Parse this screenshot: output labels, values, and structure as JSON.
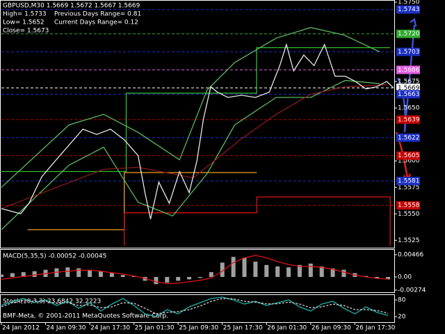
{
  "chart_data": [
    {
      "type": "line",
      "title": "GBPUSD,M30 1.5669 1.5672 1.5667 1.5669",
      "annotations": [
        "High= 1.5733",
        "Previous Days Range= 0.81",
        "Low= 1.5652",
        "Current Days Range= 0.12",
        "Close= 1.5673"
      ],
      "xlim": [
        0,
        71
      ],
      "ylim": [
        1.5518,
        1.5752
      ],
      "xticks": [
        {
          "value": 0,
          "label": "24 Jan 2012"
        },
        {
          "value": 8,
          "label": "24 Jan 09:30"
        },
        {
          "value": 16,
          "label": "24 Jan 17:30"
        },
        {
          "value": 24,
          "label": "25 Jan 01:30"
        },
        {
          "value": 32,
          "label": "25 Jan 09:30"
        },
        {
          "value": 40,
          "label": "25 Jan 17:30"
        },
        {
          "value": 48,
          "label": "26 Jan 01:30"
        },
        {
          "value": 56,
          "label": "26 Jan 09:30"
        },
        {
          "value": 64,
          "label": "26 Jan 17:30"
        }
      ],
      "yticks": [
        1.5525,
        {
          "value": 1.555,
          "label": "1.5550"
        },
        1.5575,
        {
          "value": 1.56,
          "label": "1.5600"
        },
        {
          "value": 1.565,
          "label": "1.5650"
        },
        1.5675,
        {
          "value": 1.575,
          "label": "1.5750"
        }
      ],
      "levels": [
        {
          "value": 1.5743,
          "color": "#1c2fc0"
        },
        {
          "value": 1.572,
          "label": "1.5720",
          "color": "#2fa82f"
        },
        {
          "value": 1.5703,
          "color": "#1c2fc0"
        },
        {
          "value": 1.5686,
          "color": "#e060e0"
        },
        {
          "value": 1.5669,
          "color": "#ffffff"
        },
        {
          "value": 1.5663,
          "color": "#1c2fc0"
        },
        {
          "value": 1.5639,
          "color": "#c00000"
        },
        {
          "value": 1.5622,
          "color": "#1c2fc0"
        },
        {
          "value": 1.5605,
          "color": "#c00000"
        },
        {
          "value": 1.5581,
          "color": "#1c2fc0"
        },
        {
          "value": 1.5558,
          "color": "#c00000"
        }
      ],
      "series": [
        {
          "color": "#30c030",
          "x": [
            0,
            22.6,
            22.6,
            46.2,
            46.2,
            70.4
          ],
          "values": [
            1.559,
            1.559,
            1.5664,
            1.5664,
            1.5707,
            1.5707
          ]
        },
        {
          "color": "#f0a020",
          "x": [
            4.75,
            22.25,
            22.25,
            46.25
          ],
          "values": [
            1.5535,
            1.5535,
            1.5589,
            1.5589
          ]
        },
        {
          "color": "#e01010",
          "x": [
            22.25,
            22.25,
            46.25,
            46.25,
            70.4,
            70.4
          ],
          "values": [
            1.552,
            1.5551,
            1.5551,
            1.5566,
            1.5566,
            1.552
          ]
        },
        {
          "color": "#5cb85c",
          "x": [
            0,
            12.25,
            18.5,
            24.75,
            32.25,
            37.25,
            42.25,
            49.75,
            56,
            62,
            68.5
          ],
          "values": [
            1.5575,
            1.5634,
            1.5644,
            1.5627,
            1.5601,
            1.5667,
            1.5693,
            1.5716,
            1.5726,
            1.5719,
            1.5703
          ]
        },
        {
          "color": "#5cb85c",
          "x": [
            0,
            12.25,
            18.5,
            24.75,
            31,
            37.25,
            42.25,
            49.75,
            56,
            62.25,
            68.5
          ],
          "values": [
            1.5535,
            1.5596,
            1.5613,
            1.5561,
            1.5548,
            1.5588,
            1.5634,
            1.566,
            1.566,
            1.5676,
            1.5673
          ]
        },
        {
          "color": "#8b1a1a",
          "x": [
            0,
            18.5,
            24.75,
            34.75,
            43.5,
            49.75,
            56,
            62.25,
            69.75
          ],
          "values": [
            1.5555,
            1.5592,
            1.5594,
            1.5584,
            1.5621,
            1.5644,
            1.5663,
            1.567,
            1.5672
          ]
        },
        {
          "color": "#e8e8e8",
          "x": [
            0,
            3.5,
            5,
            7.3,
            9.75,
            12.25,
            14.75,
            17.25,
            19.75,
            22.25,
            24.75,
            26,
            27,
            28.5,
            30.4,
            32.25,
            34,
            35.4,
            36.6,
            37.9,
            39.1,
            41,
            43.5,
            46,
            48.5,
            50.4,
            51.6,
            52.9,
            54.75,
            56.6,
            58.5,
            60.4,
            62.25,
            64.1,
            66,
            67.9,
            69.75,
            71
          ],
          "values": [
            1.5555,
            1.555,
            1.556,
            1.5585,
            1.56,
            1.5615,
            1.563,
            1.5625,
            1.563,
            1.562,
            1.5605,
            1.557,
            1.5545,
            1.558,
            1.556,
            1.559,
            1.557,
            1.56,
            1.564,
            1.567,
            1.5665,
            1.566,
            1.5662,
            1.566,
            1.5665,
            1.569,
            1.571,
            1.5685,
            1.57,
            1.569,
            1.571,
            1.568,
            1.568,
            1.5675,
            1.5668,
            1.567,
            1.5675,
            1.5669
          ]
        }
      ]
    },
    {
      "type": "bar",
      "title": "MACD(5,35,5) -0.00052 -0.00045",
      "xlim": [
        0,
        71
      ],
      "ylim": [
        -0.0032,
        0.00582
      ],
      "yticks": [
        0.00466,
        {
          "value": 0,
          "label": "0.00"
        },
        -0.00274
      ],
      "series": [
        {
          "color": "#a0a0a0",
          "style": "bar",
          "x": [
            0,
            2,
            4,
            6,
            8,
            10,
            12,
            14,
            16,
            18,
            20,
            22,
            24,
            26,
            28,
            30,
            32,
            34,
            36,
            38,
            40,
            42,
            44,
            46,
            48,
            50,
            52,
            54,
            56,
            58,
            60,
            62,
            64,
            66,
            68,
            70
          ],
          "values": [
            0.0005,
            0.0008,
            0.001,
            0.0012,
            0.0015,
            0.0018,
            0.002,
            0.0018,
            0.0015,
            0.0012,
            0.0008,
            0.0004,
            0.0002,
            -0.0008,
            -0.0015,
            -0.0012,
            -0.0008,
            -0.0005,
            -0.0002,
            0.001,
            0.003,
            0.0042,
            0.004,
            0.0032,
            0.0025,
            0.0022,
            0.002,
            0.0025,
            0.0028,
            0.0022,
            0.0018,
            0.0015,
            0.0008,
            0.0002,
            -0.0003,
            -0.0005
          ]
        },
        {
          "color": "#e01010",
          "style": "line",
          "x": [
            0,
            2,
            4,
            6,
            8,
            10,
            12,
            14,
            16,
            18,
            20,
            22,
            24,
            26,
            28,
            30,
            32,
            34,
            36,
            38,
            40,
            42,
            44,
            46,
            48,
            50,
            52,
            54,
            56,
            58,
            60,
            62,
            64,
            66,
            68,
            70
          ],
          "values": [
            -0.0005,
            -0.0002,
            0.0001,
            0.0004,
            0.0007,
            0.001,
            0.0012,
            0.0014,
            0.0014,
            0.0012,
            0.0009,
            0.0006,
            0.0002,
            -0.0003,
            -0.001,
            -0.0014,
            -0.0013,
            -0.001,
            -0.0007,
            -0.0002,
            0.0012,
            0.003,
            0.004,
            0.0045,
            0.004,
            0.0032,
            0.0026,
            0.0022,
            0.0022,
            0.002,
            0.0016,
            0.001,
            0.0004,
            0,
            -0.0003,
            -0.00045
          ]
        }
      ]
    },
    {
      "type": "line",
      "title": "Stoch(10,3,3) 23.6842 32.2223",
      "xlim": [
        0,
        71
      ],
      "ylim": [
        0,
        100
      ],
      "yticks": [
        80,
        20
      ],
      "series": [
        {
          "color": "#20b2aa",
          "x": [
            0,
            2,
            4,
            6,
            8,
            10,
            12,
            14,
            16,
            18,
            20,
            22,
            24,
            26,
            28,
            30,
            32,
            34,
            36,
            38,
            40,
            42,
            44,
            46,
            48,
            50,
            52,
            54,
            56,
            58,
            60,
            62,
            64,
            66,
            68,
            70
          ],
          "values": [
            60,
            75,
            85,
            70,
            80,
            60,
            75,
            50,
            70,
            40,
            65,
            85,
            60,
            30,
            20,
            45,
            30,
            55,
            70,
            85,
            90,
            80,
            65,
            75,
            60,
            70,
            80,
            55,
            40,
            65,
            75,
            50,
            30,
            55,
            35,
            24
          ]
        },
        {
          "color": "#d0d0d0",
          "dashed": true,
          "x": [
            0,
            2,
            4,
            6,
            8,
            10,
            12,
            14,
            16,
            18,
            20,
            22,
            24,
            26,
            28,
            30,
            32,
            34,
            36,
            38,
            40,
            42,
            44,
            46,
            48,
            50,
            52,
            54,
            56,
            58,
            60,
            62,
            64,
            66,
            68,
            70
          ],
          "values": [
            55,
            70,
            78,
            75,
            76,
            68,
            70,
            60,
            62,
            52,
            55,
            70,
            68,
            50,
            30,
            35,
            38,
            45,
            58,
            75,
            85,
            84,
            75,
            72,
            66,
            66,
            72,
            65,
            52,
            55,
            65,
            60,
            45,
            45,
            42,
            32
          ]
        }
      ]
    }
  ],
  "footer": "BMF-Meta, © 2001-2011 MetaQuotes Software Corp."
}
